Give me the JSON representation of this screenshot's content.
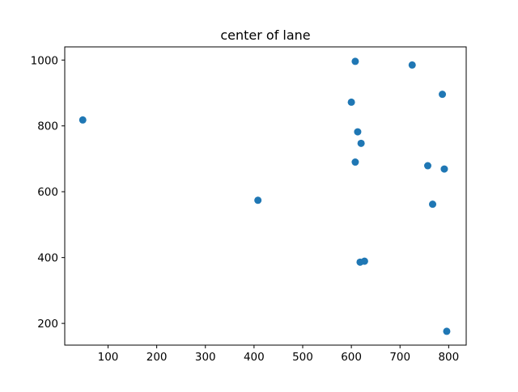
{
  "chart_data": {
    "type": "scatter",
    "title": "center of lane",
    "xlabel": "",
    "ylabel": "",
    "xlim": [
      11,
      836
    ],
    "ylim": [
      134,
      1040
    ],
    "xticks": [
      100,
      200,
      300,
      400,
      500,
      600,
      700,
      800
    ],
    "yticks": [
      200,
      400,
      600,
      800,
      1000
    ],
    "grid": false,
    "legend": "none",
    "marker_color": "#1f77b4",
    "series": [
      {
        "name": "points",
        "points": [
          {
            "x": 48,
            "y": 818
          },
          {
            "x": 408,
            "y": 574
          },
          {
            "x": 600,
            "y": 872
          },
          {
            "x": 608,
            "y": 690
          },
          {
            "x": 608,
            "y": 996
          },
          {
            "x": 613,
            "y": 782
          },
          {
            "x": 618,
            "y": 386
          },
          {
            "x": 620,
            "y": 747
          },
          {
            "x": 627,
            "y": 389
          },
          {
            "x": 725,
            "y": 985
          },
          {
            "x": 757,
            "y": 679
          },
          {
            "x": 767,
            "y": 562
          },
          {
            "x": 787,
            "y": 896
          },
          {
            "x": 791,
            "y": 669
          },
          {
            "x": 796,
            "y": 176
          }
        ]
      }
    ]
  }
}
